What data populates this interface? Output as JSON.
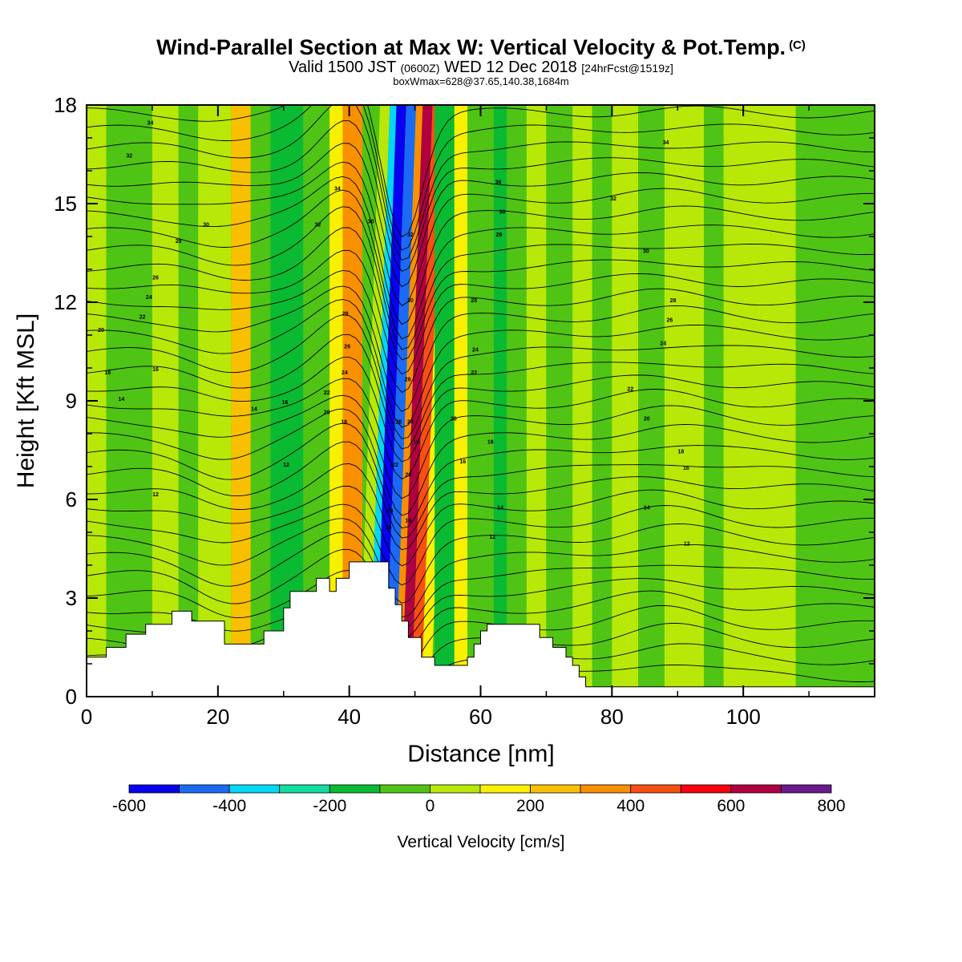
{
  "header": {
    "title": "Wind-Parallel Section at Max W: Vertical Velocity & Pot.Temp.",
    "title_mark": "(C)",
    "valid_prefix": "Valid 1500 JST",
    "valid_utc": "(0600Z)",
    "valid_date": "WED 12 Dec 2018",
    "forecast": "[24hrFcst@1519z]",
    "subtitle": "boxWmax=628@37.65,140.38,1684m"
  },
  "chart_data": {
    "type": "heatmap",
    "xlabel": "Distance [nm]",
    "ylabel": "Height [Kft MSL]",
    "xlim": [
      0,
      120
    ],
    "ylim": [
      0,
      18
    ],
    "x_ticks": [
      0,
      20,
      40,
      60,
      80,
      100
    ],
    "y_ticks": [
      0,
      3,
      6,
      9,
      12,
      15,
      18
    ],
    "colorbar": {
      "title": "Vertical Velocity [cm/s]",
      "tick_labels": [
        "-600",
        "-400",
        "-200",
        "0",
        "200",
        "400",
        "600",
        "800"
      ],
      "levels": [
        -600,
        -500,
        -400,
        -300,
        -200,
        -100,
        0,
        100,
        200,
        300,
        400,
        500,
        600,
        700,
        800
      ],
      "colors": [
        "#0a00f0",
        "#1a6af5",
        "#00d8f5",
        "#12dca0",
        "#0aba32",
        "#50c414",
        "#b8e808",
        "#f8f000",
        "#f8c000",
        "#f89000",
        "#f85010",
        "#f80010",
        "#b00040",
        "#6a1a8a"
      ]
    },
    "background_value": -40,
    "cells": [
      {
        "x": [
          0,
          3
        ],
        "v": 20
      },
      {
        "x": [
          3,
          10
        ],
        "v": -60
      },
      {
        "x": [
          10,
          14
        ],
        "v": 40
      },
      {
        "x": [
          14,
          17
        ],
        "v": -40
      },
      {
        "x": [
          17,
          22
        ],
        "v": 60
      },
      {
        "x": [
          22,
          25
        ],
        "v": 240
      },
      {
        "x": [
          25,
          28
        ],
        "v": -50
      },
      {
        "x": [
          28,
          33
        ],
        "v": -150
      },
      {
        "x": [
          33,
          37
        ],
        "v": -40
      },
      {
        "x": [
          37,
          39
        ],
        "v": 150
      },
      {
        "x": [
          39,
          42
        ],
        "v": 320
      },
      {
        "x": [
          42,
          43.5
        ],
        "v": 80
      },
      {
        "x": [
          43.5,
          44.5
        ],
        "v": -350
      },
      {
        "x": [
          44.5,
          46
        ],
        "v": -580
      },
      {
        "x": [
          46,
          47.5
        ],
        "v": -420
      },
      {
        "x": [
          47.5,
          48.5
        ],
        "v": 300
      },
      {
        "x": [
          48.5,
          50
        ],
        "v": 620
      },
      {
        "x": [
          50,
          51.5
        ],
        "v": 420
      },
      {
        "x": [
          51.5,
          53
        ],
        "v": 120
      },
      {
        "x": [
          53,
          56
        ],
        "v": -120
      },
      {
        "x": [
          56,
          58
        ],
        "v": 160
      },
      {
        "x": [
          58,
          62
        ],
        "v": -60
      },
      {
        "x": [
          62,
          64
        ],
        "v": -200
      },
      {
        "x": [
          64,
          67
        ],
        "v": -40
      },
      {
        "x": [
          67,
          70
        ],
        "v": 40
      },
      {
        "x": [
          70,
          74
        ],
        "v": -60
      },
      {
        "x": [
          74,
          77
        ],
        "v": 40
      },
      {
        "x": [
          77,
          80
        ],
        "v": -60
      },
      {
        "x": [
          80,
          84
        ],
        "v": 30
      },
      {
        "x": [
          84,
          88
        ],
        "v": -50
      },
      {
        "x": [
          88,
          94
        ],
        "v": 60
      },
      {
        "x": [
          94,
          97
        ],
        "v": -40
      },
      {
        "x": [
          97,
          108
        ],
        "v": 50
      },
      {
        "x": [
          108,
          120
        ],
        "v": -50
      }
    ],
    "terrain_kft": [
      [
        0,
        1.2
      ],
      [
        3,
        1.2
      ],
      [
        3,
        1.5
      ],
      [
        6,
        1.5
      ],
      [
        6,
        1.9
      ],
      [
        9,
        1.9
      ],
      [
        9,
        2.2
      ],
      [
        13,
        2.2
      ],
      [
        13,
        2.6
      ],
      [
        16,
        2.6
      ],
      [
        16,
        2.3
      ],
      [
        21,
        2.3
      ],
      [
        21,
        1.6
      ],
      [
        27,
        1.6
      ],
      [
        27,
        2.0
      ],
      [
        30,
        2.0
      ],
      [
        30,
        2.7
      ],
      [
        31,
        2.7
      ],
      [
        31,
        3.2
      ],
      [
        35,
        3.2
      ],
      [
        35,
        3.6
      ],
      [
        37,
        3.6
      ],
      [
        37,
        3.2
      ],
      [
        38,
        3.2
      ],
      [
        38,
        3.6
      ],
      [
        40,
        3.6
      ],
      [
        40,
        4.1
      ],
      [
        46,
        4.1
      ],
      [
        46,
        3.3
      ],
      [
        47,
        3.3
      ],
      [
        47,
        2.8
      ],
      [
        48,
        2.8
      ],
      [
        48,
        2.3
      ],
      [
        49,
        2.3
      ],
      [
        49,
        1.8
      ],
      [
        51,
        1.8
      ],
      [
        51,
        1.2
      ],
      [
        53,
        1.2
      ],
      [
        53,
        0.95
      ],
      [
        58,
        0.95
      ],
      [
        58,
        1.2
      ],
      [
        59,
        1.2
      ],
      [
        59,
        1.6
      ],
      [
        60,
        1.6
      ],
      [
        60,
        2.0
      ],
      [
        61,
        2.0
      ],
      [
        61,
        2.2
      ],
      [
        69,
        2.2
      ],
      [
        69,
        1.8
      ],
      [
        71,
        1.8
      ],
      [
        71,
        1.5
      ],
      [
        73,
        1.5
      ],
      [
        73,
        1.2
      ],
      [
        74,
        1.2
      ],
      [
        74,
        0.95
      ],
      [
        75,
        0.95
      ],
      [
        75,
        0.6
      ],
      [
        76,
        0.6
      ],
      [
        76,
        0.3
      ],
      [
        82,
        0.3
      ],
      [
        82,
        0.3
      ],
      [
        120,
        0.3
      ]
    ],
    "isotherm_labels": [
      {
        "x": 9.7,
        "y": 17.4,
        "text": "34"
      },
      {
        "x": 6.5,
        "y": 16.4,
        "text": "32"
      },
      {
        "x": 18.2,
        "y": 14.3,
        "text": "30"
      },
      {
        "x": 14,
        "y": 13.8,
        "text": "28"
      },
      {
        "x": 10.5,
        "y": 12.7,
        "text": "26"
      },
      {
        "x": 9.5,
        "y": 12.1,
        "text": "24"
      },
      {
        "x": 8.5,
        "y": 11.5,
        "text": "22"
      },
      {
        "x": 2.2,
        "y": 11.1,
        "text": "20"
      },
      {
        "x": 3.2,
        "y": 9.8,
        "text": "18"
      },
      {
        "x": 10.5,
        "y": 9.9,
        "text": "16"
      },
      {
        "x": 5.3,
        "y": 9.0,
        "text": "14"
      },
      {
        "x": 25.5,
        "y": 8.7,
        "text": "14"
      },
      {
        "x": 30.2,
        "y": 8.9,
        "text": "16"
      },
      {
        "x": 30.4,
        "y": 7.0,
        "text": "12"
      },
      {
        "x": 10.5,
        "y": 6.1,
        "text": "12"
      },
      {
        "x": 38.2,
        "y": 15.4,
        "text": "34"
      },
      {
        "x": 35.2,
        "y": 14.3,
        "text": "32"
      },
      {
        "x": 43.3,
        "y": 14.4,
        "text": "30"
      },
      {
        "x": 39.4,
        "y": 11.6,
        "text": "28"
      },
      {
        "x": 39.7,
        "y": 10.6,
        "text": "26"
      },
      {
        "x": 39.3,
        "y": 9.8,
        "text": "24"
      },
      {
        "x": 36.6,
        "y": 9.2,
        "text": "22"
      },
      {
        "x": 36.6,
        "y": 8.6,
        "text": "20"
      },
      {
        "x": 39.2,
        "y": 8.3,
        "text": "18"
      },
      {
        "x": 49.3,
        "y": 14.0,
        "text": "32"
      },
      {
        "x": 49.3,
        "y": 12.0,
        "text": "30"
      },
      {
        "x": 48.9,
        "y": 9.6,
        "text": "28"
      },
      {
        "x": 47.5,
        "y": 8.3,
        "text": "26"
      },
      {
        "x": 49.3,
        "y": 8.3,
        "text": "24"
      },
      {
        "x": 50.2,
        "y": 7.7,
        "text": "16"
      },
      {
        "x": 47.0,
        "y": 7.0,
        "text": "22"
      },
      {
        "x": 49.0,
        "y": 6.7,
        "text": "20"
      },
      {
        "x": 46.2,
        "y": 5.6,
        "text": "24"
      },
      {
        "x": 46.0,
        "y": 5.1,
        "text": "26"
      },
      {
        "x": 49.0,
        "y": 5.3,
        "text": "18"
      },
      {
        "x": 62.7,
        "y": 15.6,
        "text": "36"
      },
      {
        "x": 63.3,
        "y": 14.7,
        "text": "30"
      },
      {
        "x": 62.8,
        "y": 14.0,
        "text": "29"
      },
      {
        "x": 59.0,
        "y": 12.0,
        "text": "28"
      },
      {
        "x": 59.2,
        "y": 10.5,
        "text": "24"
      },
      {
        "x": 59.0,
        "y": 9.8,
        "text": "22"
      },
      {
        "x": 55.9,
        "y": 8.4,
        "text": "20"
      },
      {
        "x": 61.5,
        "y": 7.7,
        "text": "16"
      },
      {
        "x": 57.3,
        "y": 7.1,
        "text": "16"
      },
      {
        "x": 63.0,
        "y": 5.7,
        "text": "14"
      },
      {
        "x": 61.8,
        "y": 4.8,
        "text": "12"
      },
      {
        "x": 80.2,
        "y": 15.1,
        "text": "32"
      },
      {
        "x": 88.2,
        "y": 16.8,
        "text": "34"
      },
      {
        "x": 85.2,
        "y": 13.5,
        "text": "30"
      },
      {
        "x": 89.3,
        "y": 12.0,
        "text": "28"
      },
      {
        "x": 88.8,
        "y": 11.4,
        "text": "26"
      },
      {
        "x": 87.8,
        "y": 10.7,
        "text": "24"
      },
      {
        "x": 82.8,
        "y": 9.3,
        "text": "22"
      },
      {
        "x": 85.3,
        "y": 8.4,
        "text": "20"
      },
      {
        "x": 90.5,
        "y": 7.4,
        "text": "18"
      },
      {
        "x": 91.3,
        "y": 6.9,
        "text": "16"
      },
      {
        "x": 85.3,
        "y": 5.7,
        "text": "14"
      },
      {
        "x": 91.4,
        "y": 4.6,
        "text": "12"
      }
    ]
  }
}
